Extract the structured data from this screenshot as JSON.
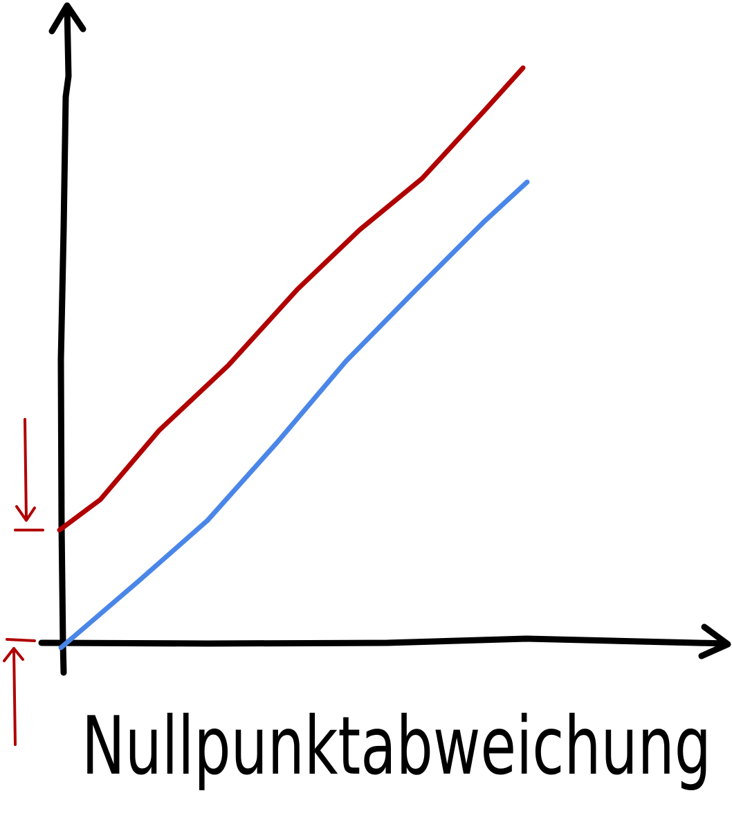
{
  "diagram": {
    "caption": "Nullpunktabweichung",
    "colors": {
      "axis": "#000000",
      "offset_line": "#b00000",
      "ideal_line": "#4a86e8",
      "marker": "#b00000"
    }
  }
}
